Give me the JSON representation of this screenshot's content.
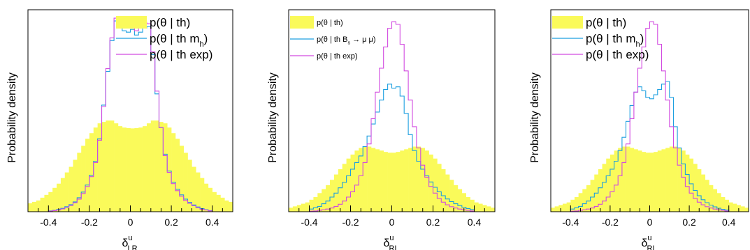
{
  "colors": {
    "theory_fill": "#fafa5a",
    "mh_line": "#1c9fe0",
    "exp_line": "#d24ae0",
    "frame": "#000000"
  },
  "chart_data": [
    {
      "type": "histogram",
      "ylabel": "Probability density",
      "xlabel": {
        "base": "δ",
        "sup": "u",
        "sub": "LR"
      },
      "xlim": [
        -0.5,
        0.5
      ],
      "ylim": [
        0,
        7.2
      ],
      "xticks": [
        "-0.4",
        "-0.2",
        "0",
        "0.2",
        "0.4"
      ],
      "legend": [
        {
          "key": "theory",
          "style": "fill",
          "color": "#fafa5a",
          "text": "p(θ | th)",
          "sub": "",
          "tail": ""
        },
        {
          "key": "mh",
          "style": "line",
          "color": "#1c9fe0",
          "text": "p(θ | th m",
          "sub": "h",
          "tail": ")"
        },
        {
          "key": "exp",
          "style": "line",
          "color": "#d24ae0",
          "text": "p(θ | th exp)",
          "sub": "",
          "tail": ""
        }
      ],
      "legend_size": "large",
      "bin_width": 0.02,
      "series": {
        "theory": {
          "x": [
            -0.5,
            -0.48,
            -0.46,
            -0.44,
            -0.42,
            -0.4,
            -0.38,
            -0.36,
            -0.34,
            -0.32,
            -0.3,
            -0.28,
            -0.26,
            -0.24,
            -0.22,
            -0.2,
            -0.18,
            -0.16,
            -0.14,
            -0.12,
            -0.1,
            -0.08,
            -0.06,
            -0.04,
            -0.02,
            0,
            0.02,
            0.04,
            0.06,
            0.08,
            0.1,
            0.12,
            0.14,
            0.16,
            0.18,
            0.2,
            0.22,
            0.24,
            0.26,
            0.28,
            0.3,
            0.32,
            0.34,
            0.36,
            0.38,
            0.4,
            0.42,
            0.44,
            0.46,
            0.48
          ],
          "y": [
            0.3,
            0.35,
            0.4,
            0.5,
            0.6,
            0.7,
            0.85,
            1.0,
            1.2,
            1.4,
            1.6,
            1.85,
            2.1,
            2.35,
            2.6,
            2.8,
            3.0,
            3.15,
            3.2,
            3.25,
            3.25,
            3.15,
            3.05,
            3.0,
            2.98,
            2.97,
            2.98,
            3.0,
            3.05,
            3.15,
            3.25,
            3.25,
            3.2,
            3.15,
            3.0,
            2.8,
            2.6,
            2.35,
            2.1,
            1.85,
            1.6,
            1.4,
            1.2,
            1.0,
            0.85,
            0.7,
            0.6,
            0.5,
            0.4,
            0.35
          ]
        },
        "mh": {
          "x": [
            -0.4,
            -0.38,
            -0.36,
            -0.34,
            -0.32,
            -0.3,
            -0.28,
            -0.26,
            -0.24,
            -0.22,
            -0.2,
            -0.18,
            -0.16,
            -0.14,
            -0.12,
            -0.1,
            -0.08,
            -0.06,
            -0.04,
            -0.02,
            0,
            0.02,
            0.04,
            0.06,
            0.08,
            0.1,
            0.12,
            0.14,
            0.16,
            0.18,
            0.2,
            0.22,
            0.24,
            0.26,
            0.28,
            0.3,
            0.32,
            0.34,
            0.36,
            0.38
          ],
          "y": [
            0.03,
            0.05,
            0.08,
            0.12,
            0.18,
            0.25,
            0.35,
            0.5,
            0.7,
            0.95,
            1.3,
            1.8,
            2.6,
            3.8,
            5.0,
            6.1,
            6.8,
            6.8,
            6.45,
            6.4,
            6.5,
            6.3,
            6.4,
            6.55,
            6.6,
            5.6,
            4.2,
            3.0,
            2.05,
            1.45,
            1.05,
            0.8,
            0.6,
            0.45,
            0.33,
            0.24,
            0.17,
            0.11,
            0.07,
            0.04
          ]
        },
        "exp": {
          "x": [
            -0.4,
            -0.38,
            -0.36,
            -0.34,
            -0.32,
            -0.3,
            -0.28,
            -0.26,
            -0.24,
            -0.22,
            -0.2,
            -0.18,
            -0.16,
            -0.14,
            -0.12,
            -0.1,
            -0.08,
            -0.06,
            -0.04,
            -0.02,
            0,
            0.02,
            0.04,
            0.06,
            0.08,
            0.1,
            0.12,
            0.14,
            0.16,
            0.18,
            0.2,
            0.22,
            0.24,
            0.26,
            0.28,
            0.3,
            0.32,
            0.34,
            0.36,
            0.38
          ],
          "y": [
            0.02,
            0.04,
            0.06,
            0.1,
            0.15,
            0.22,
            0.32,
            0.45,
            0.65,
            0.9,
            1.25,
            1.75,
            2.55,
            3.75,
            5.1,
            6.2,
            6.9,
            6.85,
            6.6,
            6.55,
            6.6,
            6.45,
            6.6,
            6.75,
            6.7,
            5.7,
            4.3,
            3.0,
            2.0,
            1.4,
            1.0,
            0.75,
            0.55,
            0.4,
            0.3,
            0.21,
            0.14,
            0.09,
            0.06,
            0.03
          ]
        }
      }
    },
    {
      "type": "histogram",
      "ylabel": "Probability density",
      "xlabel": {
        "base": "δ",
        "sup": "u",
        "sub": "RL"
      },
      "xlim": [
        -0.5,
        0.5
      ],
      "ylim": [
        0,
        7.6
      ],
      "xticks": [
        "-0.4",
        "-0.2",
        "0",
        "0.2",
        "0.4"
      ],
      "legend": [
        {
          "key": "theory",
          "style": "fill",
          "color": "#fafa5a",
          "text": "p(θ | th)",
          "sub": "",
          "tail": ""
        },
        {
          "key": "mh",
          "style": "line",
          "color": "#1c9fe0",
          "text": "p(θ | th B",
          "sub": "s",
          "tail": " → μ μ)"
        },
        {
          "key": "exp",
          "style": "line",
          "color": "#d24ae0",
          "text": "p(θ | th exp)",
          "sub": "",
          "tail": ""
        }
      ],
      "legend_size": "small",
      "bin_width": 0.02,
      "series": {
        "theory": {
          "x": [
            -0.5,
            -0.48,
            -0.46,
            -0.44,
            -0.42,
            -0.4,
            -0.38,
            -0.36,
            -0.34,
            -0.32,
            -0.3,
            -0.28,
            -0.26,
            -0.24,
            -0.22,
            -0.2,
            -0.18,
            -0.16,
            -0.14,
            -0.12,
            -0.1,
            -0.08,
            -0.06,
            -0.04,
            -0.02,
            0,
            0.02,
            0.04,
            0.06,
            0.08,
            0.1,
            0.12,
            0.14,
            0.16,
            0.18,
            0.2,
            0.22,
            0.24,
            0.26,
            0.28,
            0.3,
            0.32,
            0.34,
            0.36,
            0.38,
            0.4,
            0.42,
            0.44,
            0.46,
            0.48
          ],
          "y": [
            0.15,
            0.2,
            0.25,
            0.3,
            0.35,
            0.45,
            0.55,
            0.7,
            0.85,
            1.0,
            1.2,
            1.4,
            1.6,
            1.8,
            2.0,
            2.15,
            2.3,
            2.4,
            2.45,
            2.45,
            2.4,
            2.35,
            2.3,
            2.25,
            2.22,
            2.22,
            2.25,
            2.3,
            2.35,
            2.4,
            2.45,
            2.45,
            2.4,
            2.3,
            2.15,
            2.0,
            1.8,
            1.6,
            1.4,
            1.2,
            1.0,
            0.85,
            0.7,
            0.55,
            0.45,
            0.35,
            0.3,
            0.25,
            0.2,
            0.15
          ]
        },
        "mh": {
          "x": [
            -0.4,
            -0.38,
            -0.36,
            -0.34,
            -0.32,
            -0.3,
            -0.28,
            -0.26,
            -0.24,
            -0.22,
            -0.2,
            -0.18,
            -0.16,
            -0.14,
            -0.12,
            -0.1,
            -0.08,
            -0.06,
            -0.04,
            -0.02,
            0,
            0.02,
            0.04,
            0.06,
            0.08,
            0.1,
            0.12,
            0.14,
            0.16,
            0.18,
            0.2,
            0.22,
            0.24,
            0.26,
            0.28,
            0.3,
            0.32,
            0.34,
            0.36,
            0.38
          ],
          "y": [
            0.1,
            0.15,
            0.2,
            0.3,
            0.4,
            0.55,
            0.7,
            0.9,
            1.1,
            1.35,
            1.6,
            1.85,
            2.1,
            2.45,
            2.85,
            3.3,
            3.75,
            4.2,
            4.6,
            4.8,
            4.65,
            4.7,
            4.35,
            3.7,
            2.9,
            2.3,
            1.9,
            1.6,
            1.35,
            1.12,
            0.92,
            0.75,
            0.6,
            0.48,
            0.38,
            0.3,
            0.23,
            0.17,
            0.12,
            0.08
          ]
        },
        "exp": {
          "x": [
            -0.4,
            -0.38,
            -0.36,
            -0.34,
            -0.32,
            -0.3,
            -0.28,
            -0.26,
            -0.24,
            -0.22,
            -0.2,
            -0.18,
            -0.16,
            -0.14,
            -0.12,
            -0.1,
            -0.08,
            -0.06,
            -0.04,
            -0.02,
            0,
            0.02,
            0.04,
            0.06,
            0.08,
            0.1,
            0.12,
            0.14,
            0.16,
            0.18,
            0.2,
            0.22,
            0.24,
            0.26,
            0.28,
            0.3,
            0.32,
            0.34,
            0.36,
            0.38
          ],
          "y": [
            0.02,
            0.03,
            0.05,
            0.07,
            0.1,
            0.14,
            0.2,
            0.28,
            0.4,
            0.55,
            0.75,
            1.0,
            1.35,
            1.85,
            2.55,
            3.5,
            4.5,
            5.4,
            6.2,
            6.9,
            7.15,
            7.05,
            6.3,
            5.3,
            4.2,
            3.2,
            2.4,
            1.75,
            1.3,
            0.95,
            0.7,
            0.5,
            0.36,
            0.26,
            0.19,
            0.14,
            0.1,
            0.07,
            0.05,
            0.03
          ]
        }
      }
    },
    {
      "type": "histogram",
      "ylabel": "Probability density",
      "xlabel": {
        "base": "δ",
        "sup": "u",
        "sub": "RL"
      },
      "xlim": [
        -0.5,
        0.5
      ],
      "ylim": [
        0,
        7.6
      ],
      "xticks": [
        "-0.4",
        "-0.2",
        "0",
        "0.2",
        "0.4"
      ],
      "legend": [
        {
          "key": "theory",
          "style": "fill",
          "color": "#fafa5a",
          "text": "p(θ | th)",
          "sub": "",
          "tail": ""
        },
        {
          "key": "mh",
          "style": "line",
          "color": "#1c9fe0",
          "text": "p(θ | th m",
          "sub": "h",
          "tail": ")"
        },
        {
          "key": "exp",
          "style": "line",
          "color": "#d24ae0",
          "text": "p(θ | th exp)",
          "sub": "",
          "tail": ""
        }
      ],
      "legend_size": "large",
      "bin_width": 0.02,
      "series": {
        "theory": {
          "x": [
            -0.5,
            -0.48,
            -0.46,
            -0.44,
            -0.42,
            -0.4,
            -0.38,
            -0.36,
            -0.34,
            -0.32,
            -0.3,
            -0.28,
            -0.26,
            -0.24,
            -0.22,
            -0.2,
            -0.18,
            -0.16,
            -0.14,
            -0.12,
            -0.1,
            -0.08,
            -0.06,
            -0.04,
            -0.02,
            0,
            0.02,
            0.04,
            0.06,
            0.08,
            0.1,
            0.12,
            0.14,
            0.16,
            0.18,
            0.2,
            0.22,
            0.24,
            0.26,
            0.28,
            0.3,
            0.32,
            0.34,
            0.36,
            0.38,
            0.4,
            0.42,
            0.44,
            0.46,
            0.48
          ],
          "y": [
            0.15,
            0.2,
            0.25,
            0.3,
            0.35,
            0.45,
            0.55,
            0.7,
            0.85,
            1.0,
            1.2,
            1.4,
            1.6,
            1.8,
            2.0,
            2.15,
            2.3,
            2.4,
            2.45,
            2.45,
            2.4,
            2.35,
            2.3,
            2.25,
            2.22,
            2.22,
            2.25,
            2.3,
            2.35,
            2.4,
            2.45,
            2.45,
            2.4,
            2.3,
            2.15,
            2.0,
            1.8,
            1.6,
            1.4,
            1.2,
            1.0,
            0.85,
            0.7,
            0.55,
            0.45,
            0.35,
            0.3,
            0.25,
            0.2,
            0.15
          ]
        },
        "mh": {
          "x": [
            -0.4,
            -0.38,
            -0.36,
            -0.34,
            -0.32,
            -0.3,
            -0.28,
            -0.26,
            -0.24,
            -0.22,
            -0.2,
            -0.18,
            -0.16,
            -0.14,
            -0.12,
            -0.1,
            -0.08,
            -0.06,
            -0.04,
            -0.02,
            0,
            0.02,
            0.04,
            0.06,
            0.08,
            0.1,
            0.12,
            0.14,
            0.16,
            0.18,
            0.2,
            0.22,
            0.24,
            0.26,
            0.28,
            0.3,
            0.32,
            0.34,
            0.36,
            0.38
          ],
          "y": [
            0.1,
            0.15,
            0.2,
            0.3,
            0.4,
            0.55,
            0.7,
            0.9,
            1.1,
            1.35,
            1.6,
            1.9,
            2.3,
            2.8,
            3.4,
            4.0,
            4.5,
            4.7,
            4.55,
            4.3,
            4.25,
            4.4,
            4.6,
            4.8,
            4.9,
            4.3,
            3.2,
            2.4,
            1.8,
            1.4,
            1.05,
            0.8,
            0.6,
            0.45,
            0.34,
            0.25,
            0.18,
            0.13,
            0.09,
            0.06
          ]
        },
        "exp": {
          "x": [
            -0.4,
            -0.38,
            -0.36,
            -0.34,
            -0.32,
            -0.3,
            -0.28,
            -0.26,
            -0.24,
            -0.22,
            -0.2,
            -0.18,
            -0.16,
            -0.14,
            -0.12,
            -0.1,
            -0.08,
            -0.06,
            -0.04,
            -0.02,
            0,
            0.02,
            0.04,
            0.06,
            0.08,
            0.1,
            0.12,
            0.14,
            0.16,
            0.18,
            0.2,
            0.22,
            0.24,
            0.26,
            0.28,
            0.3,
            0.32,
            0.34,
            0.36,
            0.38
          ],
          "y": [
            0.02,
            0.03,
            0.05,
            0.07,
            0.1,
            0.14,
            0.2,
            0.28,
            0.4,
            0.55,
            0.75,
            1.0,
            1.35,
            1.85,
            2.55,
            3.5,
            4.5,
            5.4,
            6.2,
            6.9,
            7.15,
            7.05,
            6.3,
            5.3,
            4.2,
            3.2,
            2.4,
            1.75,
            1.3,
            0.95,
            0.7,
            0.5,
            0.36,
            0.26,
            0.19,
            0.14,
            0.1,
            0.07,
            0.05,
            0.03
          ]
        }
      }
    }
  ]
}
